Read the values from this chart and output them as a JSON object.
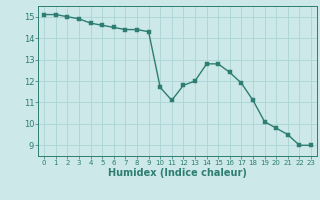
{
  "x": [
    0,
    1,
    2,
    3,
    4,
    5,
    6,
    7,
    8,
    9,
    10,
    11,
    12,
    13,
    14,
    15,
    16,
    17,
    18,
    19,
    20,
    21,
    22,
    23
  ],
  "y": [
    15.1,
    15.1,
    15.0,
    14.9,
    14.7,
    14.6,
    14.5,
    14.4,
    14.4,
    14.3,
    11.7,
    11.1,
    11.8,
    12.0,
    12.8,
    12.8,
    12.4,
    11.9,
    11.1,
    10.1,
    9.8,
    9.5,
    9.0,
    9.0
  ],
  "line_color": "#2e7d72",
  "marker": "s",
  "marker_size": 2.5,
  "bg_color": "#cce8e8",
  "grid_color": "#aad4d4",
  "axis_color": "#2e7d72",
  "xlabel": "Humidex (Indice chaleur)",
  "xlabel_fontsize": 7,
  "ylim": [
    8.5,
    15.5
  ],
  "xlim": [
    -0.5,
    23.5
  ],
  "yticks": [
    9,
    10,
    11,
    12,
    13,
    14,
    15
  ],
  "xticks": [
    0,
    1,
    2,
    3,
    4,
    5,
    6,
    7,
    8,
    9,
    10,
    11,
    12,
    13,
    14,
    15,
    16,
    17,
    18,
    19,
    20,
    21,
    22,
    23
  ]
}
